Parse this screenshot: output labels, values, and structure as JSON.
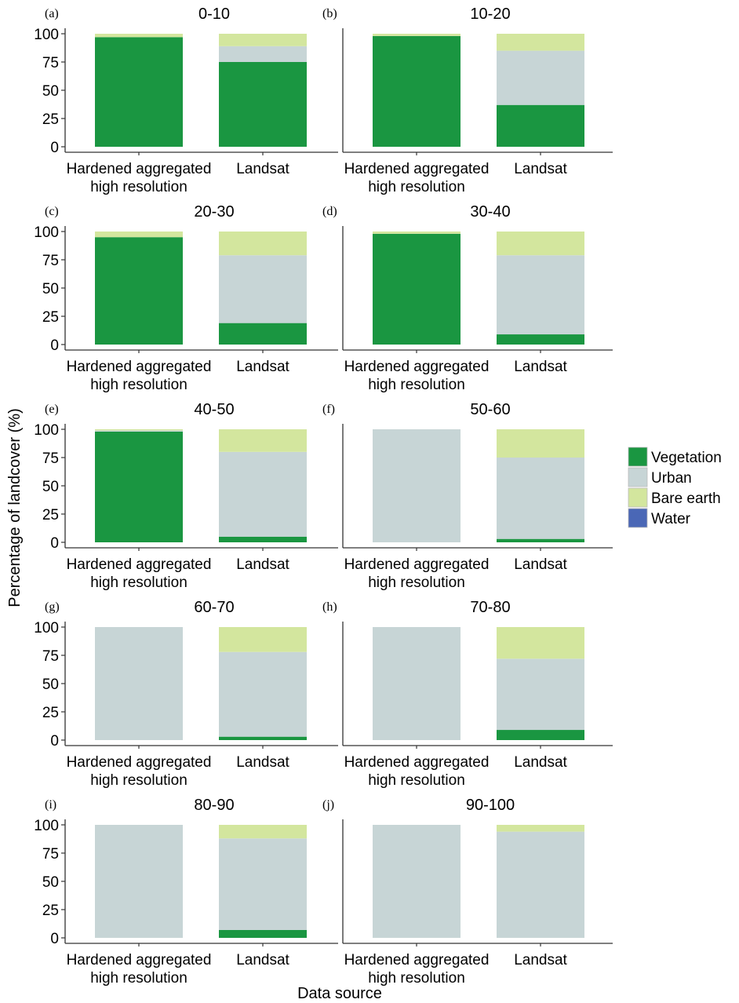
{
  "chart_data": {
    "type": "bar",
    "stacked": true,
    "xlabel": "Data source",
    "ylabel": "Percentage of landcover (%)",
    "ylim": [
      0,
      100
    ],
    "yticks": [
      0,
      25,
      50,
      75,
      100
    ],
    "categories": [
      "Hardened aggregated\nhigh resolution",
      "Landsat"
    ],
    "legend": {
      "placement": "right",
      "entries": [
        {
          "name": "Vegetation",
          "color": "#1a9641"
        },
        {
          "name": "Urban",
          "color": "#c7d5d6"
        },
        {
          "name": "Bare earth",
          "color": "#d3e69e"
        },
        {
          "name": "Water",
          "color": "#4a67b6"
        }
      ]
    },
    "series_order": [
      "Vegetation",
      "Urban",
      "Bare earth",
      "Water"
    ],
    "panels": [
      {
        "letter": "(a)",
        "title": "0-10",
        "values": [
          [
            97,
            0,
            3,
            0
          ],
          [
            75,
            14,
            11,
            0
          ]
        ]
      },
      {
        "letter": "(b)",
        "title": "10-20",
        "values": [
          [
            98,
            0,
            2,
            0
          ],
          [
            37,
            48,
            15,
            0
          ]
        ]
      },
      {
        "letter": "(c)",
        "title": "20-30",
        "values": [
          [
            95,
            0,
            5,
            0
          ],
          [
            19,
            60,
            21,
            0
          ]
        ]
      },
      {
        "letter": "(d)",
        "title": "30-40",
        "values": [
          [
            98,
            0,
            2,
            0
          ],
          [
            9,
            70,
            21,
            0
          ]
        ]
      },
      {
        "letter": "(e)",
        "title": "40-50",
        "values": [
          [
            98,
            1,
            1,
            0
          ],
          [
            5,
            75,
            20,
            0
          ]
        ]
      },
      {
        "letter": "(f)",
        "title": "50-60",
        "values": [
          [
            0,
            100,
            0,
            0
          ],
          [
            3,
            72,
            25,
            0
          ]
        ]
      },
      {
        "letter": "(g)",
        "title": "60-70",
        "values": [
          [
            0,
            100,
            0,
            0
          ],
          [
            3,
            75,
            22,
            0
          ]
        ]
      },
      {
        "letter": "(h)",
        "title": "70-80",
        "values": [
          [
            0,
            100,
            0,
            0
          ],
          [
            9,
            63,
            28,
            0
          ]
        ]
      },
      {
        "letter": "(i)",
        "title": "80-90",
        "values": [
          [
            0,
            100,
            0,
            0
          ],
          [
            7,
            81,
            12,
            0
          ]
        ]
      },
      {
        "letter": "(j)",
        "title": "90-100",
        "values": [
          [
            0,
            100,
            0,
            0
          ],
          [
            0,
            94,
            6,
            0
          ]
        ]
      }
    ]
  }
}
